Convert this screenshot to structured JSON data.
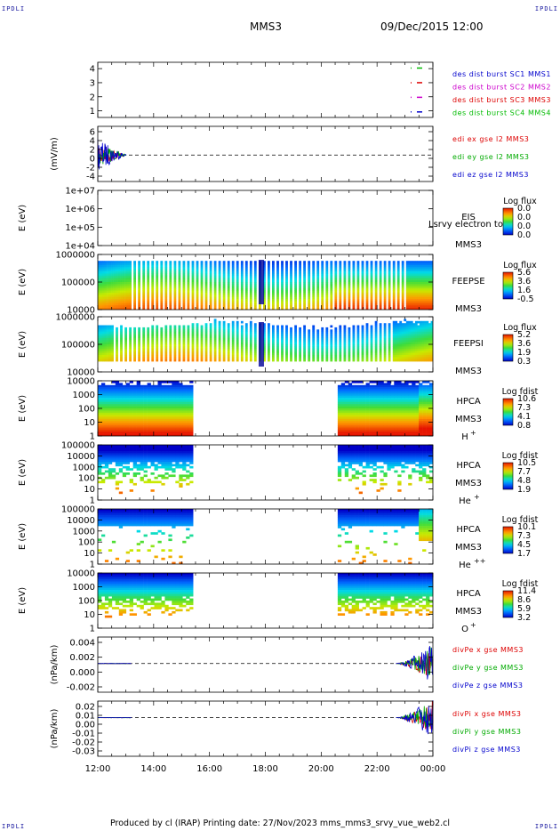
{
  "header": {
    "corner_label": "IPDLI",
    "mission": "MMS3",
    "datetime": "09/Dec/2015 12:00"
  },
  "footer": {
    "text": "Produced by cl (IRAP)   Printing date: 27/Nov/2023   mms_mms3_srvy_vue_web2.cl"
  },
  "chart_data": [
    {
      "type": "line",
      "panel": "spacecraft-availability",
      "yticks": [
        "1",
        "2",
        "3",
        "4"
      ],
      "legend": [
        {
          "label": "des dist burst SC1 MMS1",
          "color": "#0000cc"
        },
        {
          "label": "des dist burst SC2 MMS2",
          "color": "#cc00cc"
        },
        {
          "label": "des dist burst SC3 MMS3",
          "color": "#dd0000"
        },
        {
          "label": "des dist burst SC4 MMS4",
          "color": "#00bb00"
        }
      ]
    },
    {
      "type": "line",
      "panel": "edi-electric-field",
      "ylabel": "(mV/m)",
      "yticks": [
        "6",
        "4",
        "2",
        "0",
        "-2",
        "-4"
      ],
      "series": [
        {
          "name": "edi ex gse l2 MMS3",
          "color": "#dd0000"
        },
        {
          "name": "edi ey gse l2 MMS3",
          "color": "#00aa00"
        },
        {
          "name": "edi ez gse l2 MMS3",
          "color": "#0000cc"
        }
      ]
    },
    {
      "type": "heatmap",
      "panel": "eis",
      "ylabel": "E (eV)",
      "yticks": [
        "1e+07",
        "1e+06",
        "1e+05",
        "1e+04"
      ],
      "instrument": "EIS",
      "overlay_text": "Lsrvy electron to",
      "sc": "MMS3",
      "colorbar_title": "Log flux",
      "colorbar_ticks": [
        "0.0",
        "0.0",
        "0.0",
        "0.0"
      ]
    },
    {
      "type": "heatmap",
      "panel": "feepse",
      "ylabel": "E (eV)",
      "yticks": [
        "1000000",
        "100000",
        "10000"
      ],
      "instrument": "FEEPSE",
      "sc": "MMS3",
      "colorbar_title": "Log flux",
      "colorbar_ticks": [
        "5.6",
        "3.6",
        "1.6",
        "-0.5"
      ]
    },
    {
      "type": "heatmap",
      "panel": "feepsi",
      "ylabel": "E (eV)",
      "yticks": [
        "1000000",
        "100000",
        "10000"
      ],
      "instrument": "FEEPSI",
      "sc": "MMS3",
      "colorbar_title": "Log flux",
      "colorbar_ticks": [
        "5.2",
        "3.6",
        "1.9",
        "0.3"
      ]
    },
    {
      "type": "heatmap",
      "panel": "hpca-h",
      "ylabel": "E (eV)",
      "yticks": [
        "10000",
        "1000",
        "100",
        "10",
        "1"
      ],
      "instrument": "HPCA",
      "sc": "MMS3",
      "species": "H",
      "charge": "+",
      "colorbar_title": "Log fdist",
      "colorbar_ticks": [
        "10.6",
        "7.3",
        "4.1",
        "0.8"
      ]
    },
    {
      "type": "heatmap",
      "panel": "hpca-he1",
      "ylabel": "E (eV)",
      "yticks": [
        "100000",
        "10000",
        "1000",
        "100",
        "10",
        "1"
      ],
      "instrument": "HPCA",
      "sc": "MMS3",
      "species": "He",
      "charge": "+",
      "colorbar_title": "Log fdist",
      "colorbar_ticks": [
        "10.5",
        "7.7",
        "4.8",
        "1.9"
      ]
    },
    {
      "type": "heatmap",
      "panel": "hpca-he2",
      "ylabel": "E (eV)",
      "yticks": [
        "100000",
        "10000",
        "1000",
        "100",
        "10",
        "1"
      ],
      "instrument": "HPCA",
      "sc": "MMS3",
      "species": "He",
      "charge": "++",
      "colorbar_title": "Log fdist",
      "colorbar_ticks": [
        "10.1",
        "7.3",
        "4.5",
        "1.7"
      ]
    },
    {
      "type": "heatmap",
      "panel": "hpca-o",
      "ylabel": "E (eV)",
      "yticks": [
        "10000",
        "1000",
        "100",
        "10",
        "1"
      ],
      "instrument": "HPCA",
      "sc": "MMS3",
      "species": "O",
      "charge": "+",
      "colorbar_title": "Log fdist",
      "colorbar_ticks": [
        "11.4",
        "8.6",
        "5.9",
        "3.2"
      ]
    },
    {
      "type": "line",
      "panel": "divpe",
      "ylabel": "(nPa/km)",
      "yticks": [
        "0.004",
        "0.002",
        "0.000",
        "-0.002"
      ],
      "series": [
        {
          "name": "divPe x gse MMS3",
          "color": "#dd0000"
        },
        {
          "name": "divPe y gse MMS3",
          "color": "#00aa00"
        },
        {
          "name": "divPe z gse MMS3",
          "color": "#0000cc"
        }
      ]
    },
    {
      "type": "line",
      "panel": "divpi",
      "ylabel": "(nPa/km)",
      "yticks": [
        "0.02",
        "0.01",
        "0.00",
        "-0.01",
        "-0.02",
        "-0.03"
      ],
      "series": [
        {
          "name": "divPi x gse MMS3",
          "color": "#dd0000"
        },
        {
          "name": "divPi y gse MMS3",
          "color": "#00aa00"
        },
        {
          "name": "divPi z gse MMS3",
          "color": "#0000cc"
        }
      ]
    }
  ],
  "time_axis": {
    "ticks": [
      "12:00",
      "14:00",
      "16:00",
      "18:00",
      "20:00",
      "22:00",
      "00:00"
    ]
  }
}
